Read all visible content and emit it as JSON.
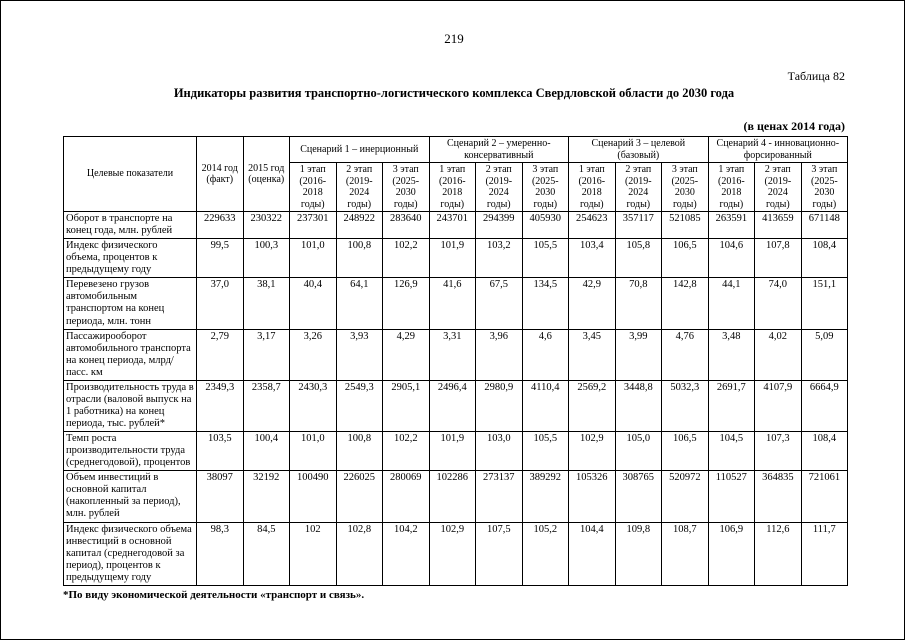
{
  "page": {
    "number": "219",
    "table_label": "Таблица 82",
    "title": "Индикаторы развития транспортно-логистического комплекса Свердловской области до 2030 года",
    "price_note": "(в ценах 2014 года)",
    "footnote": "*По виду экономической деятельности «транспорт и связь»."
  },
  "table": {
    "col_headers": {
      "indicators": "Целевые показатели",
      "y2014": "2014 год\n(факт)",
      "y2015": "2015 год\n(оценка)",
      "scenarios": [
        "Сценарий 1 – инерционный",
        "Сценарий 2 – умеренно-консервативный",
        "Сценарий 3 – целевой (базовый)",
        "Сценарий 4 - инновационно-форсированный"
      ],
      "stages": [
        "1 этап\n(2016-\n2018\nгоды)",
        "2 этап\n(2019-\n2024\nгоды)",
        "3 этап\n(2025-\n2030\nгоды)"
      ]
    },
    "rows": [
      {
        "label": "Оборот в транспорте на конец года, млн. рублей",
        "values": [
          "229633",
          "230322",
          "237301",
          "248922",
          "283640",
          "243701",
          "294399",
          "405930",
          "254623",
          "357117",
          "521085",
          "263591",
          "413659",
          "671148"
        ]
      },
      {
        "label": "Индекс физического объема, процентов к предыдущему году",
        "values": [
          "99,5",
          "100,3",
          "101,0",
          "100,8",
          "102,2",
          "101,9",
          "103,2",
          "105,5",
          "103,4",
          "105,8",
          "106,5",
          "104,6",
          "107,8",
          "108,4"
        ]
      },
      {
        "label": "Перевезено грузов автомобильным транспортом на конец периода, млн. тонн",
        "values": [
          "37,0",
          "38,1",
          "40,4",
          "64,1",
          "126,9",
          "41,6",
          "67,5",
          "134,5",
          "42,9",
          "70,8",
          "142,8",
          "44,1",
          "74,0",
          "151,1"
        ]
      },
      {
        "label": "Пассажирооборот автомобильного транспорта на конец периода, млрд/пасс. км",
        "values": [
          "2,79",
          "3,17",
          "3,26",
          "3,93",
          "4,29",
          "3,31",
          "3,96",
          "4,6",
          "3,45",
          "3,99",
          "4,76",
          "3,48",
          "4,02",
          "5,09"
        ]
      },
      {
        "label": "Производительность труда в отрасли (валовой выпуск на 1 работника) на конец периода, тыс. рублей*",
        "values": [
          "2349,3",
          "2358,7",
          "2430,3",
          "2549,3",
          "2905,1",
          "2496,4",
          "2980,9",
          "4110,4",
          "2569,2",
          "3448,8",
          "5032,3",
          "2691,7",
          "4107,9",
          "6664,9"
        ]
      },
      {
        "label": "Темп роста производительности труда (среднегодовой), процентов",
        "values": [
          "103,5",
          "100,4",
          "101,0",
          "100,8",
          "102,2",
          "101,9",
          "103,0",
          "105,5",
          "102,9",
          "105,0",
          "106,5",
          "104,5",
          "107,3",
          "108,4"
        ]
      },
      {
        "label": "Объем инвестиций в основной капитал (накопленный за период), млн. рублей",
        "values": [
          "38097",
          "32192",
          "100490",
          "226025",
          "280069",
          "102286",
          "273137",
          "389292",
          "105326",
          "308765",
          "520972",
          "110527",
          "364835",
          "721061"
        ]
      },
      {
        "label": "Индекс физического объема инвестиций в основной капитал (среднегодовой за период), процентов к предыдущему году",
        "values": [
          "98,3",
          "84,5",
          "102",
          "102,8",
          "104,2",
          "102,9",
          "107,5",
          "105,2",
          "104,4",
          "109,8",
          "108,7",
          "106,9",
          "112,6",
          "111,7"
        ]
      }
    ]
  }
}
